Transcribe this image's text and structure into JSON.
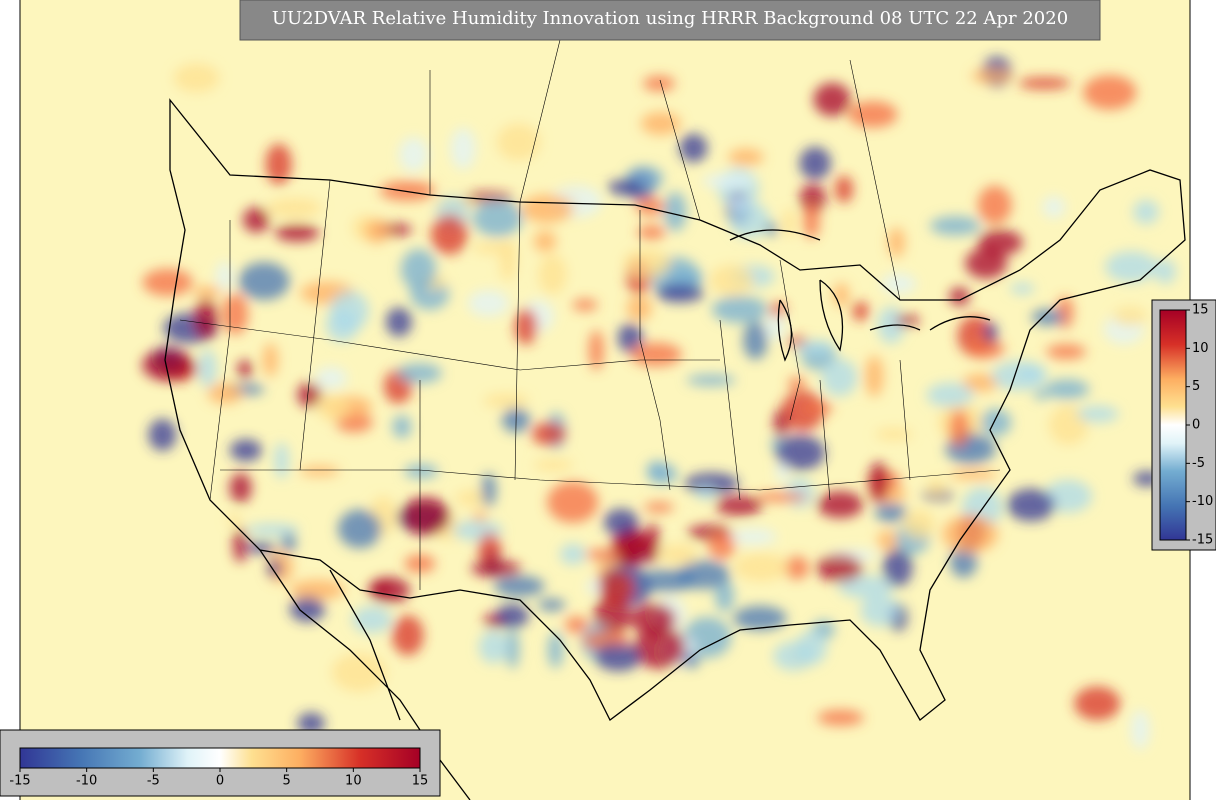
{
  "title": "UU2DVAR Relative Humidity Innovation using HRRR Background 08 UTC 22 Apr 2020",
  "colorbar_horizontal": {
    "range": [
      -15,
      15
    ],
    "ticks": [
      -15,
      -10,
      -5,
      0,
      5,
      10,
      15
    ]
  },
  "colorbar_vertical": {
    "range": [
      -15,
      15
    ],
    "ticks": [
      15,
      10,
      5,
      0,
      -5,
      -10,
      -15
    ]
  }
}
